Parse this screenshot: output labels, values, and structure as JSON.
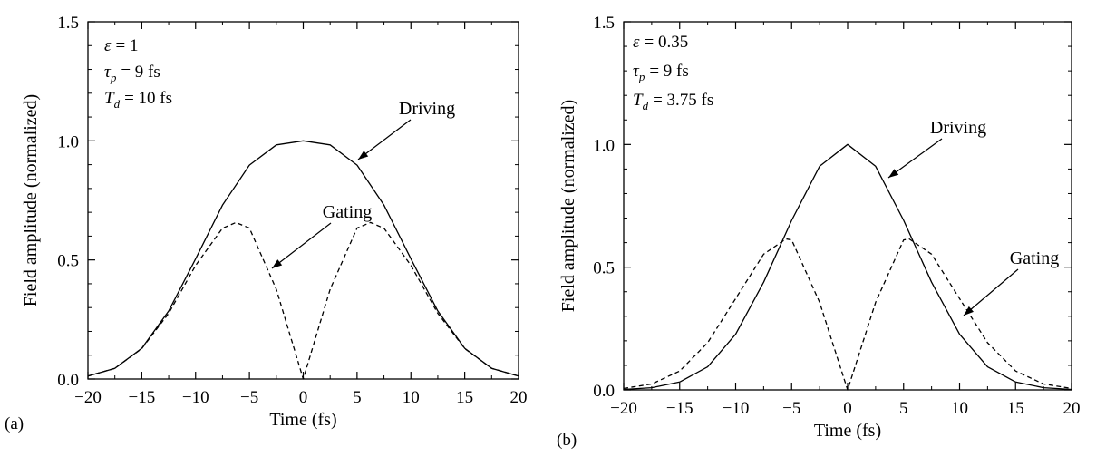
{
  "chart_data": [
    {
      "type": "line",
      "panel_label": "(a)",
      "xlabel": "Time (fs)",
      "ylabel": "Field amplitude (normalized)",
      "xlim": [
        -20,
        20
      ],
      "ylim": [
        0,
        1.5
      ],
      "x_ticks": [
        "−20",
        "−15",
        "−10",
        "−5",
        "0",
        "5",
        "10",
        "15",
        "20"
      ],
      "y_ticks": [
        "0.0",
        "0.5",
        "1.0",
        "1.5"
      ],
      "params": {
        "epsilon": {
          "symbol": "ε",
          "value": "= 1"
        },
        "tau_p": {
          "symbol": "τ",
          "sub": "p",
          "value": "= 9 fs"
        },
        "T_d": {
          "symbol": "T",
          "sub": "d",
          "value": "= 10 fs"
        }
      },
      "series": [
        {
          "name": "Driving",
          "style": "solid",
          "x": [
            -20,
            -17.5,
            -15,
            -12.5,
            -10,
            -7.5,
            -5,
            -2.5,
            0,
            2.5,
            5,
            7.5,
            10,
            12.5,
            15,
            17.5,
            20
          ],
          "y": [
            0.012,
            0.045,
            0.129,
            0.286,
            0.505,
            0.73,
            0.898,
            0.983,
            1.0,
            0.983,
            0.898,
            0.73,
            0.505,
            0.286,
            0.129,
            0.045,
            0.012
          ]
        },
        {
          "name": "Gating",
          "style": "dashed",
          "x": [
            -20,
            -17.5,
            -15,
            -12.5,
            -10,
            -7.5,
            -6.25,
            -5,
            -2.5,
            0,
            2.5,
            5,
            6.25,
            7.5,
            10,
            12.5,
            15,
            17.5,
            20
          ],
          "y": [
            0.012,
            0.045,
            0.128,
            0.276,
            0.477,
            0.633,
            0.657,
            0.634,
            0.377,
            0.0,
            0.377,
            0.634,
            0.657,
            0.633,
            0.477,
            0.276,
            0.128,
            0.045,
            0.012
          ]
        }
      ]
    },
    {
      "type": "line",
      "panel_label": "(b)",
      "xlabel": "Time (fs)",
      "ylabel": "Field amplitude (normalized)",
      "xlim": [
        -20,
        20
      ],
      "ylim": [
        0,
        1.5
      ],
      "x_ticks": [
        "−20",
        "−15",
        "−10",
        "−5",
        "0",
        "5",
        "10",
        "15",
        "20"
      ],
      "y_ticks": [
        "0.0",
        "0.5",
        "1.0",
        "1.5"
      ],
      "params": {
        "epsilon": {
          "symbol": "ε",
          "value": "= 0.35"
        },
        "tau_p": {
          "symbol": "τ",
          "sub": "p",
          "value": "= 9 fs"
        },
        "T_d": {
          "symbol": "T",
          "sub": "d",
          "value": "= 3.75 fs"
        }
      },
      "series": [
        {
          "name": "Driving",
          "style": "solid",
          "x": [
            -20,
            -17.5,
            -15,
            -12.5,
            -10,
            -7.5,
            -5,
            -2.5,
            0,
            2.5,
            5,
            7.5,
            10,
            12.5,
            15,
            17.5,
            20
          ],
          "y": [
            0.002,
            0.009,
            0.032,
            0.094,
            0.227,
            0.439,
            0.691,
            0.911,
            1.0,
            0.911,
            0.691,
            0.439,
            0.227,
            0.094,
            0.032,
            0.009,
            0.002
          ]
        },
        {
          "name": "Gating",
          "style": "dashed",
          "x": [
            -20,
            -17.5,
            -15,
            -12.5,
            -10,
            -7.5,
            -5.5,
            -5,
            -2.5,
            0,
            2.5,
            5,
            5.5,
            7.5,
            10,
            12.5,
            15,
            17.5,
            20
          ],
          "y": [
            0.006,
            0.024,
            0.077,
            0.192,
            0.372,
            0.553,
            0.615,
            0.611,
            0.357,
            0.0,
            0.357,
            0.611,
            0.615,
            0.553,
            0.372,
            0.192,
            0.077,
            0.024,
            0.006
          ]
        }
      ]
    }
  ]
}
